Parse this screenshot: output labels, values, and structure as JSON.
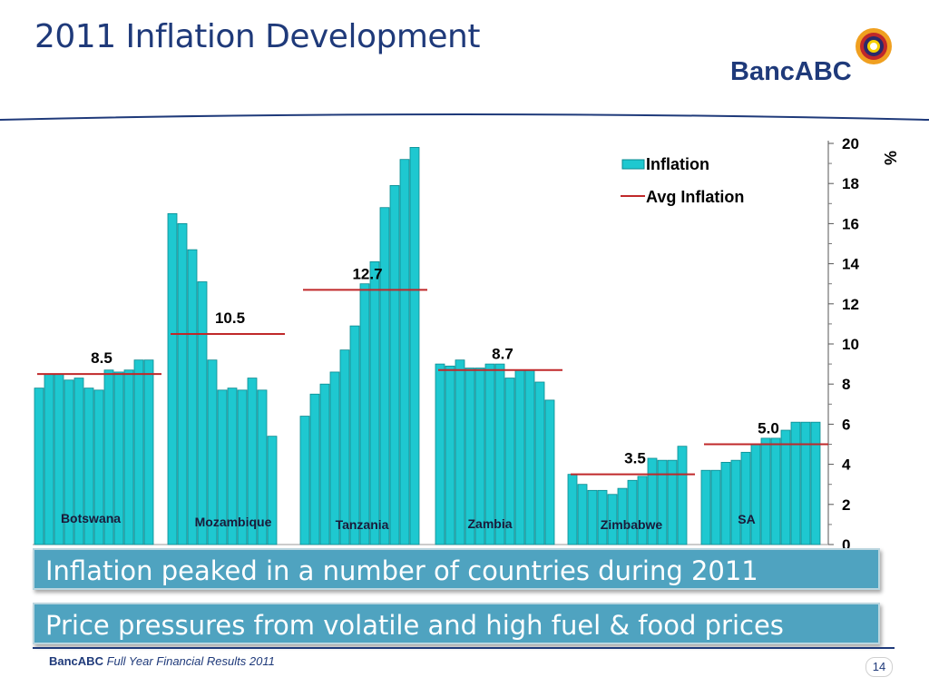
{
  "slide": {
    "title": "2011 Inflation Development",
    "logo_text": "BancABC",
    "banner_1": "Inflation peaked in a number of countries during 2011",
    "banner_2": "Price pressures from volatile and high fuel & food prices",
    "footer_brand": "BancABC",
    "footer_text": "Full Year Financial Results 2011",
    "page_number": "14",
    "colors": {
      "title": "#1f3a7a",
      "bar": "#1ec8d0",
      "avg_line": "#c0282a",
      "banner": "#4fa3c0"
    }
  },
  "chart_data": {
    "type": "bar",
    "ylabel": "%",
    "ylim": [
      0,
      20
    ],
    "yticks": [
      "0",
      "2",
      "4",
      "6",
      "8",
      "10",
      "12",
      "14",
      "16",
      "18",
      "20"
    ],
    "legend": {
      "position": "top-right",
      "entries": [
        "Inflation",
        "Avg Inflation"
      ]
    },
    "groups": [
      {
        "name": "Botswana",
        "values": [
          7.8,
          8.5,
          8.5,
          8.2,
          8.3,
          7.8,
          7.7,
          8.7,
          8.6,
          8.7,
          9.2,
          9.2
        ],
        "avg": 8.5,
        "avg_label": "8.5"
      },
      {
        "name": "Mozambique",
        "values": [
          16.5,
          16.0,
          14.7,
          13.1,
          9.2,
          7.7,
          7.8,
          7.7,
          8.3,
          7.7,
          5.4
        ],
        "avg": 10.5,
        "avg_label": "10.5"
      },
      {
        "name": "Tanzania",
        "values": [
          6.4,
          7.5,
          8.0,
          8.6,
          9.7,
          10.9,
          13.0,
          14.1,
          16.8,
          17.9,
          19.2,
          19.8
        ],
        "avg": 12.7,
        "avg_label": "12.7"
      },
      {
        "name": "Zambia",
        "values": [
          9.0,
          8.9,
          9.2,
          8.8,
          8.8,
          9.0,
          9.0,
          8.3,
          8.7,
          8.7,
          8.1,
          7.2
        ],
        "avg": 8.7,
        "avg_label": "8.7"
      },
      {
        "name": "Zimbabwe",
        "values": [
          3.5,
          3.0,
          2.7,
          2.7,
          2.5,
          2.8,
          3.2,
          3.4,
          4.3,
          4.2,
          4.2,
          4.9
        ],
        "avg": 3.5,
        "avg_label": "3.5"
      },
      {
        "name": "SA",
        "values": [
          3.7,
          3.7,
          4.1,
          4.2,
          4.6,
          5.0,
          5.3,
          5.3,
          5.7,
          6.1,
          6.1,
          6.1
        ],
        "avg": 5.0,
        "avg_label": "5.0"
      }
    ]
  }
}
